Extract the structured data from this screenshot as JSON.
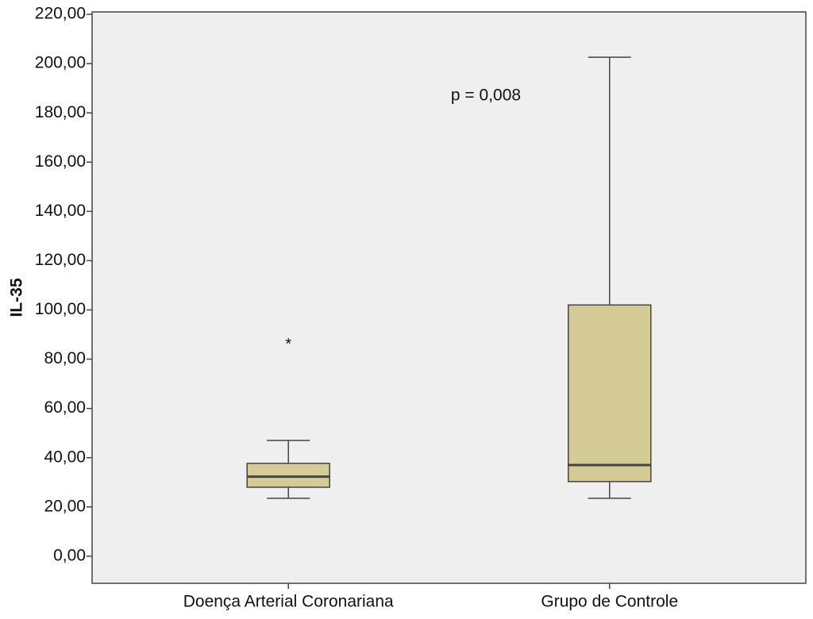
{
  "chart_data": {
    "type": "box",
    "y_label": "IL-35",
    "annotation": "p = 0,008",
    "categories": [
      "Doença Arterial Coronariana",
      "Grupo de Controle"
    ],
    "boxes": [
      {
        "min": 23.5,
        "q1": 28,
        "median": 32.3,
        "q3": 37.7,
        "max": 47,
        "outliers": [
          87
        ]
      },
      {
        "min": 23.5,
        "q1": 30.3,
        "median": 37,
        "q3": 102,
        "max": 202.6,
        "outliers": []
      }
    ],
    "color": "#d4cb97",
    "ylim": [
      -11,
      221
    ],
    "yticks": [
      {
        "value": 0,
        "label": "0,00"
      },
      {
        "value": 20,
        "label": "20,00"
      },
      {
        "value": 40,
        "label": "40,00"
      },
      {
        "value": 60,
        "label": "60,00"
      },
      {
        "value": 80,
        "label": "80,00"
      },
      {
        "value": 100,
        "label": "100,00"
      },
      {
        "value": 120,
        "label": "120,00"
      },
      {
        "value": 140,
        "label": "140,00"
      },
      {
        "value": 160,
        "label": "160,00"
      },
      {
        "value": 180,
        "label": "180,00"
      },
      {
        "value": 200,
        "label": "200,00"
      },
      {
        "value": 220,
        "label": "220,00"
      }
    ]
  }
}
